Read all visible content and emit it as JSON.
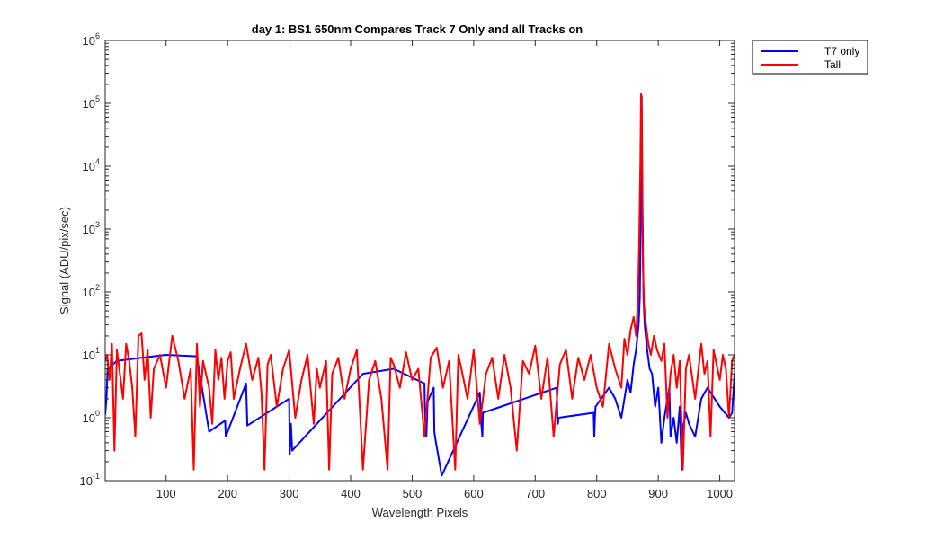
{
  "chart_data": {
    "type": "line",
    "title": "day 1: BS1  650nm  Compares Track 7 Only and all Tracks on",
    "xlabel": "Wavelength Pixels",
    "ylabel": "Signal (ADU/pix/sec)",
    "xlim": [
      1,
      1024
    ],
    "ylim": [
      0.1,
      1000000
    ],
    "yscale": "log",
    "grid": false,
    "legend_position": "outside top-right",
    "x_ticks": [
      100,
      200,
      300,
      400,
      500,
      600,
      700,
      800,
      900,
      1000
    ],
    "y_ticks": [
      {
        "base": "10",
        "exp": "-1",
        "value": 0.1
      },
      {
        "base": "10",
        "exp": "0",
        "value": 1
      },
      {
        "base": "10",
        "exp": "1",
        "value": 10
      },
      {
        "base": "10",
        "exp": "2",
        "value": 100
      },
      {
        "base": "10",
        "exp": "3",
        "value": 1000
      },
      {
        "base": "10",
        "exp": "4",
        "value": 10000
      },
      {
        "base": "10",
        "exp": "5",
        "value": 100000
      },
      {
        "base": "10",
        "exp": "6",
        "value": 1000000
      }
    ],
    "series": [
      {
        "name": "T7 only",
        "color": "#0000ff",
        "x": [
          1,
          3,
          5,
          20,
          60,
          100,
          150,
          170,
          196,
          197,
          230,
          232,
          300,
          301,
          303,
          305,
          420,
          470,
          520,
          521,
          523,
          525,
          535,
          536,
          537,
          548,
          610,
          612,
          614,
          615,
          735,
          736,
          737,
          738,
          795,
          796,
          797,
          798,
          820,
          830,
          840,
          850,
          855,
          860,
          864,
          868,
          870,
          872,
          873,
          874,
          876,
          878,
          882,
          886,
          890,
          895,
          900,
          905,
          910,
          915,
          918,
          920,
          925,
          930,
          935,
          938,
          940,
          945,
          950,
          960,
          970,
          980,
          1000,
          1015,
          1020,
          1024
        ],
        "y": [
          1.1,
          2.0,
          6.0,
          8.0,
          9.0,
          10.0,
          9.5,
          0.6,
          0.9,
          0.5,
          3.5,
          0.75,
          2.0,
          0.26,
          0.8,
          0.3,
          5.0,
          6.0,
          3.5,
          1.0,
          0.5,
          1.8,
          3.0,
          0.6,
          0.5,
          0.12,
          2.5,
          0.9,
          0.5,
          1.2,
          3.0,
          1.0,
          0.8,
          1.0,
          1.2,
          0.5,
          1.0,
          1.5,
          3.0,
          2.0,
          1.0,
          4.0,
          2.5,
          7.0,
          12.0,
          30.0,
          80.0,
          3000.0,
          130000.0,
          5000.0,
          80.0,
          30.0,
          12.0,
          6.0,
          5.0,
          1.5,
          3.0,
          0.4,
          1.0,
          2.0,
          3.0,
          0.5,
          1.0,
          0.4,
          1.5,
          0.15,
          0.7,
          1.2,
          0.8,
          0.5,
          2.0,
          3.0,
          1.5,
          1.0,
          1.2,
          5.0
        ]
      },
      {
        "name": "Tall",
        "color": "#ff0000",
        "x": [
          1,
          4,
          8,
          12,
          16,
          20,
          25,
          30,
          35,
          40,
          45,
          50,
          55,
          60,
          65,
          70,
          75,
          80,
          90,
          100,
          110,
          120,
          130,
          140,
          145,
          150,
          155,
          160,
          170,
          175,
          180,
          185,
          190,
          195,
          200,
          205,
          210,
          220,
          230,
          240,
          250,
          255,
          260,
          265,
          270,
          280,
          290,
          300,
          310,
          320,
          330,
          340,
          345,
          350,
          360,
          365,
          370,
          380,
          390,
          400,
          410,
          420,
          430,
          440,
          450,
          460,
          465,
          470,
          480,
          490,
          500,
          510,
          520,
          530,
          540,
          550,
          560,
          570,
          575,
          580,
          590,
          600,
          610,
          620,
          630,
          640,
          650,
          660,
          670,
          680,
          690,
          700,
          710,
          720,
          730,
          740,
          750,
          760,
          770,
          780,
          790,
          800,
          810,
          820,
          830,
          840,
          845,
          850,
          855,
          860,
          864,
          867,
          869,
          871,
          872,
          873,
          874,
          875,
          877,
          880,
          884,
          888,
          893,
          898,
          905,
          910,
          915,
          920,
          925,
          930,
          935,
          940,
          945,
          950,
          960,
          970,
          975,
          980,
          985,
          990,
          1000,
          1005,
          1010,
          1015,
          1020,
          1024
        ],
        "y": [
          8,
          10,
          4,
          15,
          0.3,
          12,
          5,
          2,
          15,
          8,
          3,
          0.5,
          20,
          22,
          4,
          12,
          1.0,
          6,
          10,
          3,
          20,
          8,
          2,
          6,
          0.15,
          15,
          1.5,
          8,
          3,
          0.8,
          12,
          4,
          9,
          2,
          8,
          11,
          2,
          6,
          15,
          4,
          9,
          2.5,
          0.15,
          7,
          10,
          1.5,
          6,
          12,
          1.0,
          4,
          10,
          0.8,
          6,
          3,
          8,
          0.15,
          5,
          9,
          2,
          6,
          12,
          0.15,
          4,
          8,
          2,
          0.15,
          9,
          7,
          3,
          11,
          4,
          6,
          0.5,
          9,
          13,
          3,
          8,
          0.15,
          10,
          6,
          2,
          12,
          0.8,
          5,
          9,
          2,
          10,
          3,
          0.3,
          8,
          5,
          14,
          2,
          9,
          0.5,
          7,
          12,
          2,
          9,
          4,
          10,
          3,
          1.5,
          15,
          6,
          3,
          18,
          10,
          25,
          40,
          20,
          80,
          600,
          12000,
          140000,
          90000,
          3000,
          300,
          60,
          30,
          15,
          10,
          20,
          12,
          8,
          15,
          1.0,
          5,
          10,
          3,
          8,
          0.15,
          6,
          10,
          2,
          15,
          5,
          8,
          0.5,
          12,
          4,
          10,
          6,
          1.0,
          8,
          10
        ]
      }
    ]
  }
}
